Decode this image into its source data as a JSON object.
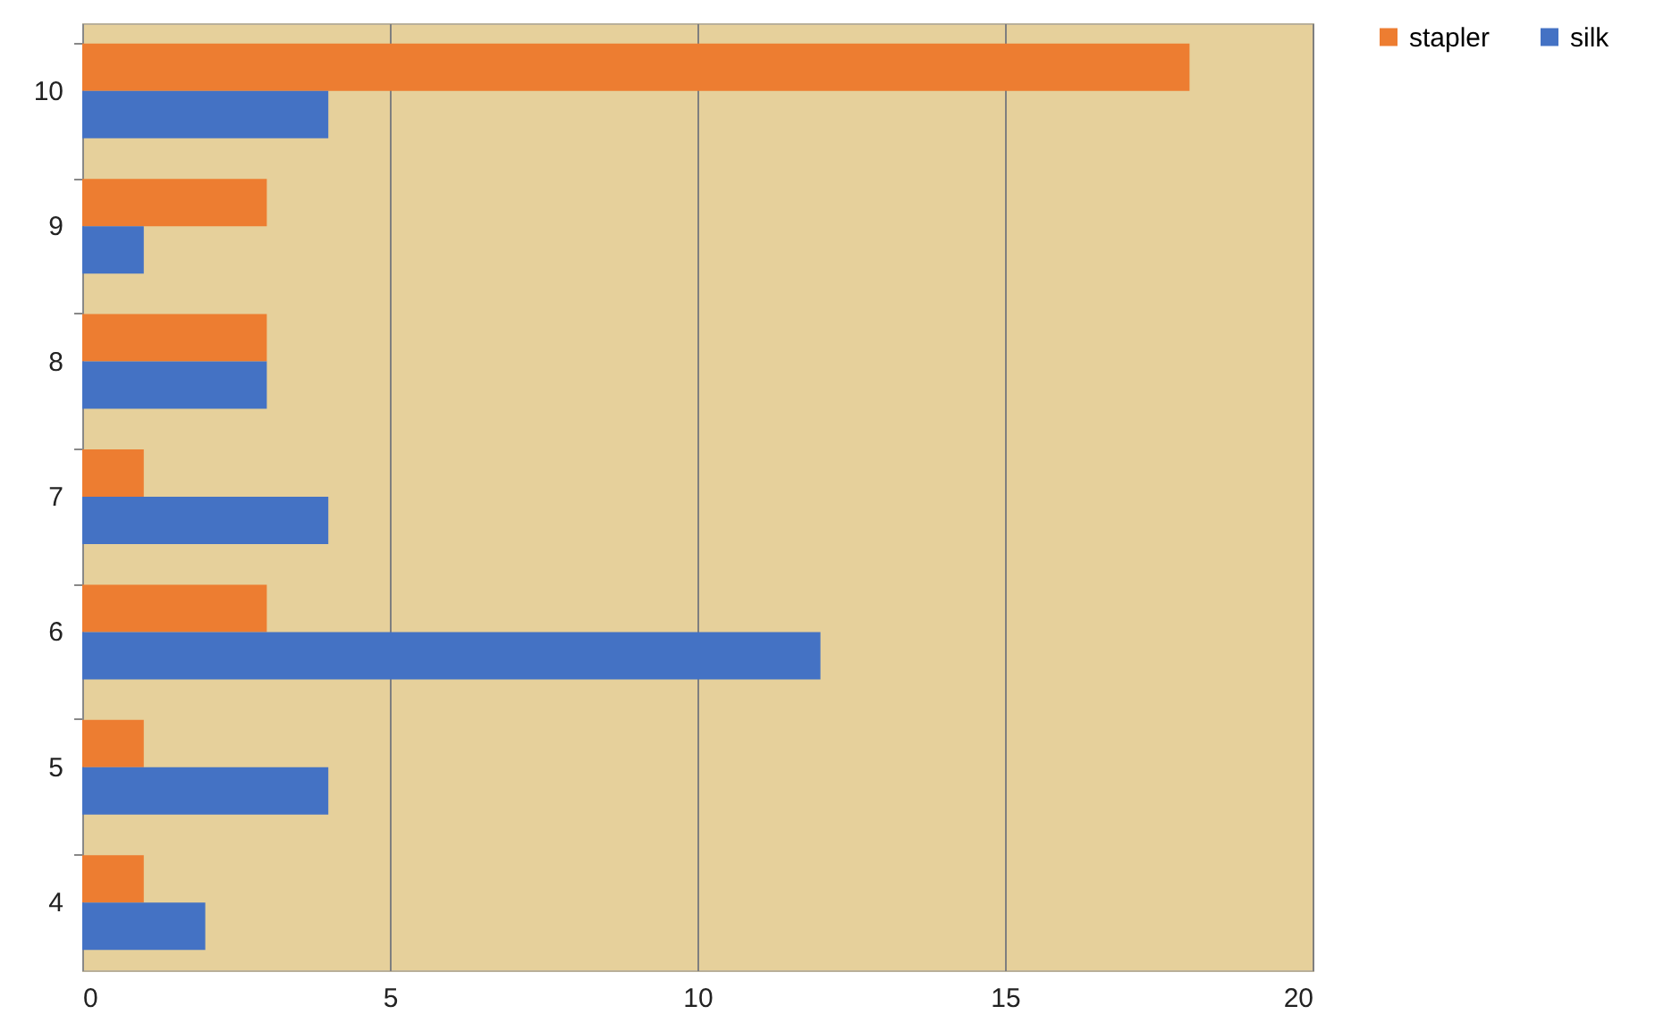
{
  "chart_data": {
    "type": "bar",
    "orientation": "horizontal",
    "categories": [
      "10",
      "9",
      "8",
      "7",
      "6",
      "5",
      "4"
    ],
    "series": [
      {
        "name": "stapler",
        "color": "#ed7d31",
        "values": [
          18,
          3,
          3,
          1,
          3,
          1,
          1
        ]
      },
      {
        "name": "silk",
        "color": "#4472c4",
        "values": [
          4,
          1,
          3,
          4,
          12,
          4,
          2
        ]
      }
    ],
    "xlim": [
      0,
      20
    ],
    "xticks": [
      0,
      5,
      10,
      15,
      20
    ],
    "grid": "x",
    "legend": "right"
  }
}
